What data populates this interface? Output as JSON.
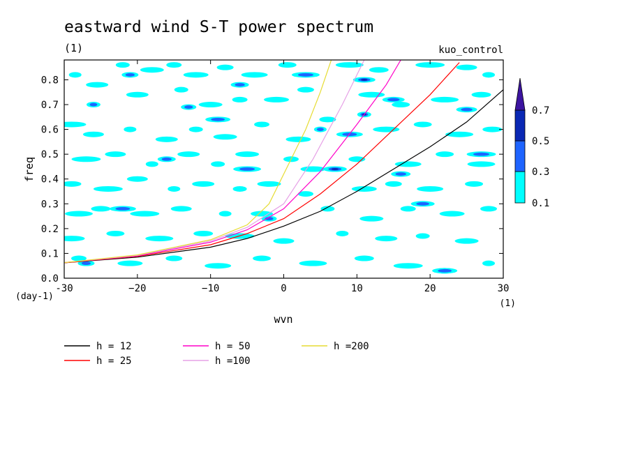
{
  "chart_data": {
    "type": "heatmap",
    "title": "eastward wind S-T power spectrum",
    "subtitle": "(1)",
    "run_label": "kuo_control",
    "xlabel": "wvn",
    "ylabel": "freq",
    "x_units": "(1)",
    "y_units": "(day-1)",
    "xlim": [
      -30,
      30
    ],
    "ylim": [
      0,
      0.88
    ],
    "x_ticks": [
      -30,
      -20,
      -10,
      0,
      10,
      20,
      30
    ],
    "x_tick_labels": [
      "-30",
      "−20",
      "−10",
      "0",
      "10",
      "20",
      "30"
    ],
    "y_ticks": [
      0,
      0.1,
      0.2,
      0.3,
      0.4,
      0.5,
      0.6,
      0.7,
      0.8
    ],
    "y_tick_labels": [
      "0.0",
      "0.1",
      "0.2",
      "0.3",
      "0.4",
      "0.5",
      "0.6",
      "0.7",
      "0.8"
    ],
    "contour_levels": [
      0.1,
      0.3,
      0.5,
      0.7
    ],
    "colorbar": {
      "labels": [
        "0.1",
        "0.3",
        "0.5",
        "0.7"
      ],
      "colors": [
        "#00ffff",
        "#1e64ff",
        "#0a28b4",
        "#3c14a0"
      ]
    },
    "dispersion_curves": [
      {
        "name": "h = 12",
        "color": "#000000",
        "points": [
          [
            -30,
            0.062
          ],
          [
            -20,
            0.085
          ],
          [
            -10,
            0.125
          ],
          [
            -5,
            0.16
          ],
          [
            0,
            0.21
          ],
          [
            5,
            0.27
          ],
          [
            10,
            0.35
          ],
          [
            15,
            0.44
          ],
          [
            20,
            0.53
          ],
          [
            25,
            0.63
          ],
          [
            30,
            0.76
          ]
        ]
      },
      {
        "name": "h = 25",
        "color": "#ff0000",
        "points": [
          [
            -30,
            0.062
          ],
          [
            -20,
            0.088
          ],
          [
            -10,
            0.135
          ],
          [
            -5,
            0.18
          ],
          [
            0,
            0.24
          ],
          [
            5,
            0.34
          ],
          [
            10,
            0.46
          ],
          [
            15,
            0.6
          ],
          [
            20,
            0.74
          ],
          [
            24,
            0.87
          ]
        ]
      },
      {
        "name": "h = 50",
        "color": "#ff00c8",
        "points": [
          [
            -30,
            0.063
          ],
          [
            -20,
            0.09
          ],
          [
            -10,
            0.145
          ],
          [
            -5,
            0.195
          ],
          [
            0,
            0.28
          ],
          [
            5,
            0.43
          ],
          [
            10,
            0.62
          ],
          [
            14,
            0.78
          ],
          [
            16,
            0.88
          ]
        ]
      },
      {
        "name": "h =100",
        "color": "#e6a0e6",
        "points": [
          [
            -30,
            0.063
          ],
          [
            -20,
            0.092
          ],
          [
            -10,
            0.15
          ],
          [
            -5,
            0.205
          ],
          [
            0,
            0.3
          ],
          [
            4,
            0.48
          ],
          [
            8,
            0.7
          ],
          [
            11,
            0.88
          ]
        ]
      },
      {
        "name": "h =200",
        "color": "#e6dc32",
        "points": [
          [
            -30,
            0.063
          ],
          [
            -20,
            0.094
          ],
          [
            -10,
            0.155
          ],
          [
            -5,
            0.215
          ],
          [
            -2,
            0.3
          ],
          [
            0,
            0.42
          ],
          [
            3,
            0.6
          ],
          [
            5,
            0.75
          ],
          [
            6.5,
            0.88
          ]
        ]
      }
    ],
    "power_blobs": [
      {
        "x": -28.5,
        "y": 0.82,
        "level": 0.1
      },
      {
        "x": -25.5,
        "y": 0.78,
        "level": 0.1
      },
      {
        "x": -22,
        "y": 0.86,
        "level": 0.1
      },
      {
        "x": -18,
        "y": 0.84,
        "level": 0.1
      },
      {
        "x": -15,
        "y": 0.86,
        "level": 0.1
      },
      {
        "x": -12,
        "y": 0.82,
        "level": 0.1
      },
      {
        "x": -8,
        "y": 0.85,
        "level": 0.1
      },
      {
        "x": -4,
        "y": 0.82,
        "level": 0.1
      },
      {
        "x": 0.5,
        "y": 0.86,
        "level": 0.1
      },
      {
        "x": 9,
        "y": 0.86,
        "level": 0.1
      },
      {
        "x": 13,
        "y": 0.84,
        "level": 0.1
      },
      {
        "x": 20,
        "y": 0.86,
        "level": 0.1
      },
      {
        "x": 25,
        "y": 0.85,
        "level": 0.1
      },
      {
        "x": 28,
        "y": 0.82,
        "level": 0.1
      },
      {
        "x": -20,
        "y": 0.74,
        "level": 0.1
      },
      {
        "x": -14,
        "y": 0.76,
        "level": 0.1
      },
      {
        "x": -10,
        "y": 0.7,
        "level": 0.1
      },
      {
        "x": -6,
        "y": 0.72,
        "level": 0.1
      },
      {
        "x": -1,
        "y": 0.72,
        "level": 0.1
      },
      {
        "x": 3,
        "y": 0.76,
        "level": 0.1
      },
      {
        "x": 12,
        "y": 0.74,
        "level": 0.1
      },
      {
        "x": 16,
        "y": 0.7,
        "level": 0.1
      },
      {
        "x": 22,
        "y": 0.72,
        "level": 0.1
      },
      {
        "x": 27,
        "y": 0.74,
        "level": 0.1
      },
      {
        "x": -29,
        "y": 0.62,
        "level": 0.1
      },
      {
        "x": -26,
        "y": 0.58,
        "level": 0.1
      },
      {
        "x": -21,
        "y": 0.6,
        "level": 0.1
      },
      {
        "x": -16,
        "y": 0.56,
        "level": 0.1
      },
      {
        "x": -12,
        "y": 0.6,
        "level": 0.1
      },
      {
        "x": -8,
        "y": 0.57,
        "level": 0.1
      },
      {
        "x": -3,
        "y": 0.62,
        "level": 0.1
      },
      {
        "x": 2,
        "y": 0.56,
        "level": 0.1
      },
      {
        "x": 6,
        "y": 0.64,
        "level": 0.1
      },
      {
        "x": 14,
        "y": 0.6,
        "level": 0.1
      },
      {
        "x": 19,
        "y": 0.62,
        "level": 0.1
      },
      {
        "x": 24,
        "y": 0.58,
        "level": 0.1
      },
      {
        "x": 28.5,
        "y": 0.6,
        "level": 0.1
      },
      {
        "x": -27,
        "y": 0.48,
        "level": 0.1
      },
      {
        "x": -23,
        "y": 0.5,
        "level": 0.1
      },
      {
        "x": -18,
        "y": 0.46,
        "level": 0.1
      },
      {
        "x": -13,
        "y": 0.5,
        "level": 0.1
      },
      {
        "x": -9,
        "y": 0.46,
        "level": 0.1
      },
      {
        "x": -5,
        "y": 0.5,
        "level": 0.1
      },
      {
        "x": 1,
        "y": 0.48,
        "level": 0.1
      },
      {
        "x": 4,
        "y": 0.44,
        "level": 0.1
      },
      {
        "x": 10,
        "y": 0.48,
        "level": 0.1
      },
      {
        "x": 17,
        "y": 0.46,
        "level": 0.1
      },
      {
        "x": 22,
        "y": 0.5,
        "level": 0.1
      },
      {
        "x": 27,
        "y": 0.46,
        "level": 0.1
      },
      {
        "x": -29,
        "y": 0.38,
        "level": 0.1
      },
      {
        "x": -24,
        "y": 0.36,
        "level": 0.1
      },
      {
        "x": -20,
        "y": 0.4,
        "level": 0.1
      },
      {
        "x": -15,
        "y": 0.36,
        "level": 0.1
      },
      {
        "x": -11,
        "y": 0.38,
        "level": 0.1
      },
      {
        "x": -6,
        "y": 0.36,
        "level": 0.1
      },
      {
        "x": -2,
        "y": 0.38,
        "level": 0.1
      },
      {
        "x": 3,
        "y": 0.34,
        "level": 0.1
      },
      {
        "x": 11,
        "y": 0.36,
        "level": 0.1
      },
      {
        "x": 15,
        "y": 0.38,
        "level": 0.1
      },
      {
        "x": 20,
        "y": 0.36,
        "level": 0.1
      },
      {
        "x": 26,
        "y": 0.38,
        "level": 0.1
      },
      {
        "x": -28,
        "y": 0.26,
        "level": 0.1
      },
      {
        "x": -25,
        "y": 0.28,
        "level": 0.1
      },
      {
        "x": -19,
        "y": 0.26,
        "level": 0.1
      },
      {
        "x": -14,
        "y": 0.28,
        "level": 0.1
      },
      {
        "x": -8,
        "y": 0.26,
        "level": 0.1
      },
      {
        "x": -3,
        "y": 0.26,
        "level": 0.1
      },
      {
        "x": 6,
        "y": 0.28,
        "level": 0.1
      },
      {
        "x": 12,
        "y": 0.24,
        "level": 0.1
      },
      {
        "x": 17,
        "y": 0.28,
        "level": 0.1
      },
      {
        "x": 23,
        "y": 0.26,
        "level": 0.1
      },
      {
        "x": 28,
        "y": 0.28,
        "level": 0.1
      },
      {
        "x": -29,
        "y": 0.16,
        "level": 0.1
      },
      {
        "x": -23,
        "y": 0.18,
        "level": 0.1
      },
      {
        "x": -17,
        "y": 0.16,
        "level": 0.1
      },
      {
        "x": -11,
        "y": 0.18,
        "level": 0.1
      },
      {
        "x": -6,
        "y": 0.17,
        "level": 0.1
      },
      {
        "x": 0,
        "y": 0.15,
        "level": 0.1
      },
      {
        "x": 8,
        "y": 0.18,
        "level": 0.1
      },
      {
        "x": 14,
        "y": 0.16,
        "level": 0.1
      },
      {
        "x": 19,
        "y": 0.17,
        "level": 0.1
      },
      {
        "x": 25,
        "y": 0.15,
        "level": 0.1
      },
      {
        "x": -28,
        "y": 0.08,
        "level": 0.1
      },
      {
        "x": -21,
        "y": 0.06,
        "level": 0.1
      },
      {
        "x": -15,
        "y": 0.08,
        "level": 0.1
      },
      {
        "x": -9,
        "y": 0.05,
        "level": 0.1
      },
      {
        "x": -3,
        "y": 0.08,
        "level": 0.1
      },
      {
        "x": 4,
        "y": 0.06,
        "level": 0.1
      },
      {
        "x": 11,
        "y": 0.08,
        "level": 0.1
      },
      {
        "x": 17,
        "y": 0.05,
        "level": 0.1
      },
      {
        "x": 22,
        "y": 0.03,
        "level": 0.1
      },
      {
        "x": 28,
        "y": 0.06,
        "level": 0.1
      },
      {
        "x": 11,
        "y": 0.8,
        "level": 0.5
      },
      {
        "x": 11,
        "y": 0.66,
        "level": 0.5
      },
      {
        "x": 7,
        "y": 0.44,
        "level": 0.5
      },
      {
        "x": -13,
        "y": 0.69,
        "level": 0.3
      },
      {
        "x": -9,
        "y": 0.64,
        "level": 0.3
      },
      {
        "x": -21,
        "y": 0.82,
        "level": 0.3
      },
      {
        "x": -22,
        "y": 0.28,
        "level": 0.3
      },
      {
        "x": -16,
        "y": 0.48,
        "level": 0.3
      },
      {
        "x": -5,
        "y": 0.44,
        "level": 0.3
      },
      {
        "x": 16,
        "y": 0.42,
        "level": 0.3
      },
      {
        "x": 27,
        "y": 0.5,
        "level": 0.3
      },
      {
        "x": 25,
        "y": 0.68,
        "level": 0.3
      },
      {
        "x": 5,
        "y": 0.6,
        "level": 0.3
      },
      {
        "x": 15,
        "y": 0.72,
        "level": 0.3
      },
      {
        "x": -26,
        "y": 0.7,
        "level": 0.3
      },
      {
        "x": 19,
        "y": 0.3,
        "level": 0.3
      },
      {
        "x": -2,
        "y": 0.24,
        "level": 0.3
      },
      {
        "x": 22,
        "y": 0.03,
        "level": 0.3
      },
      {
        "x": -27,
        "y": 0.06,
        "level": 0.3
      },
      {
        "x": 9,
        "y": 0.58,
        "level": 0.3
      },
      {
        "x": -6,
        "y": 0.78,
        "level": 0.3
      },
      {
        "x": 3,
        "y": 0.82,
        "level": 0.3
      }
    ]
  },
  "legend": {
    "entries": [
      {
        "label": "h = 12",
        "color": "#000000"
      },
      {
        "label": "h = 25",
        "color": "#ff0000"
      },
      {
        "label": "h = 50",
        "color": "#ff00c8"
      },
      {
        "label": "h =100",
        "color": "#e6a0e6"
      },
      {
        "label": "h =200",
        "color": "#e6dc32"
      }
    ]
  }
}
